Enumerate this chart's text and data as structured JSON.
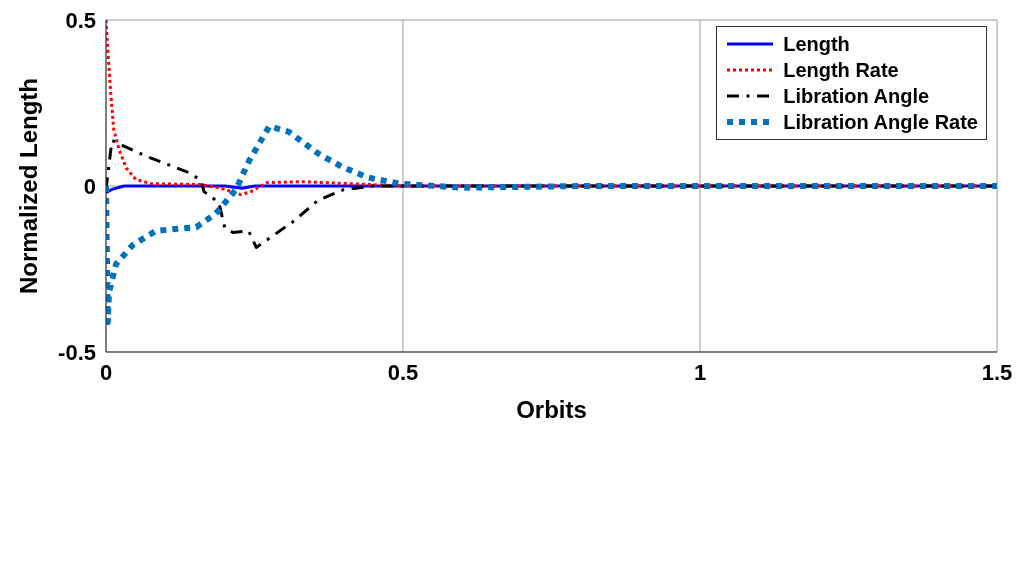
{
  "chart_data": {
    "type": "line",
    "xlabel": "Orbits",
    "ylabel": "Normalized Length",
    "xlim": [
      0,
      1.5
    ],
    "xticks": [
      0,
      0.5,
      1,
      1.5
    ],
    "ylim": [
      -0.5,
      0.5
    ],
    "yticks": [
      -0.5,
      0,
      0.5
    ],
    "grid": true,
    "legend": "top right",
    "marker": "none",
    "series": [
      {
        "name": "Length",
        "color": "#0000ff",
        "line_style": "solid",
        "x": [
          0,
          0.01,
          0.03,
          0.1,
          0.2,
          0.23,
          0.25,
          0.3,
          0.5,
          1,
          1.5
        ],
        "values": [
          -0.02,
          -0.01,
          0,
          0,
          0,
          -0.007,
          0,
          0,
          0,
          0,
          0
        ]
      },
      {
        "name": "Length Rate",
        "color": "#ff0000",
        "line_style": "dotted",
        "x": [
          0,
          0.003,
          0.008,
          0.013,
          0.022,
          0.034,
          0.05,
          0.076,
          0.16,
          0.194,
          0.227,
          0.244,
          0.27,
          0.33,
          0.5,
          1,
          1.5
        ],
        "values": [
          0.5,
          0.41,
          0.28,
          0.17,
          0.11,
          0.054,
          0.02,
          0.007,
          0.004,
          -0.007,
          -0.026,
          -0.017,
          0.01,
          0.013,
          0,
          0,
          0
        ]
      },
      {
        "name": "Libration Angle",
        "color": "#000000",
        "line_style": "dashed",
        "x": [
          0,
          0.01,
          0.067,
          0.14,
          0.16,
          0.165,
          0.19,
          0.2,
          0.214,
          0.24,
          0.253,
          0.3,
          0.31,
          0.357,
          0.4,
          0.45,
          0.5,
          1,
          1.5
        ],
        "values": [
          -0.01,
          0.137,
          0.09,
          0.04,
          0.017,
          -0.017,
          -0.05,
          -0.126,
          -0.14,
          -0.135,
          -0.185,
          -0.126,
          -0.115,
          -0.043,
          -0.011,
          0,
          0,
          0,
          0
        ]
      },
      {
        "name": "Libration Angle Rate",
        "color": "#0072bd",
        "line_style": "dotted",
        "x": [
          0,
          0.003,
          0.005,
          0.017,
          0.045,
          0.084,
          0.152,
          0.185,
          0.219,
          0.241,
          0.275,
          0.308,
          0.357,
          0.396,
          0.44,
          0.494,
          0.6,
          0.8,
          1,
          1.5
        ],
        "values": [
          0,
          -0.41,
          -0.32,
          -0.235,
          -0.178,
          -0.135,
          -0.124,
          -0.083,
          -0.01,
          0.076,
          0.18,
          0.163,
          0.098,
          0.059,
          0.026,
          0.007,
          -0.005,
          0,
          0,
          0
        ]
      }
    ]
  }
}
